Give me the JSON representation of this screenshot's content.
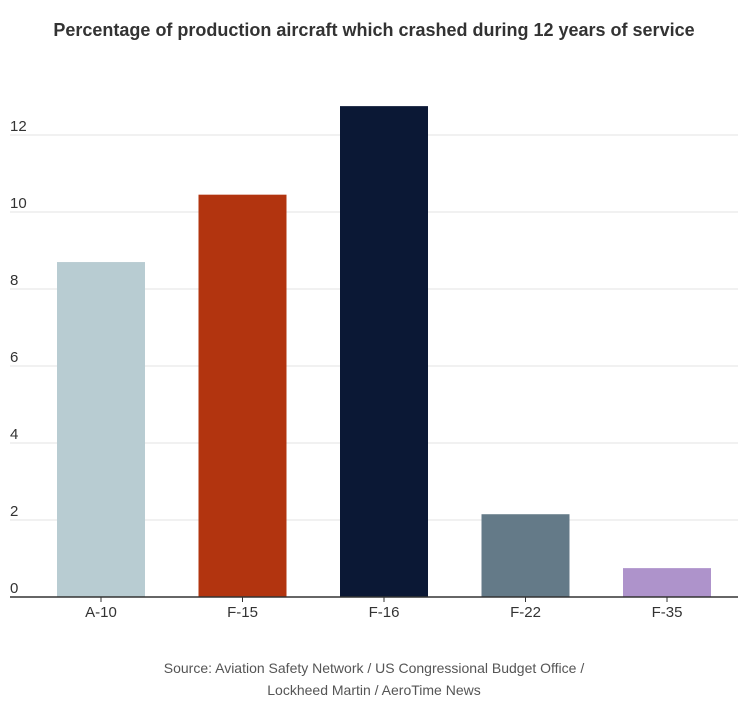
{
  "chart_data": {
    "type": "bar",
    "title": "Percentage of production aircraft which crashed during 12 years of service",
    "xlabel": "",
    "ylabel": "",
    "categories": [
      "A-10",
      "F-15",
      "F-16",
      "F-22",
      "F-35"
    ],
    "values": [
      8.7,
      10.45,
      12.75,
      2.15,
      0.75
    ],
    "colors": [
      "#b8ccd2",
      "#b2340f",
      "#0b1835",
      "#647a88",
      "#ae93cb"
    ],
    "ylim": [
      0,
      12.75
    ],
    "yticks": [
      0,
      2,
      4,
      6,
      8,
      10,
      12
    ],
    "ytick_labels": [
      "0",
      "2",
      "4",
      "6",
      "8",
      "10",
      "12"
    ],
    "grid": true,
    "legend": "none"
  },
  "source": {
    "line1": "Source: Aviation Safety Network / US Congressional Budget Office /",
    "line2": "Lockheed Martin / AeroTime News"
  }
}
